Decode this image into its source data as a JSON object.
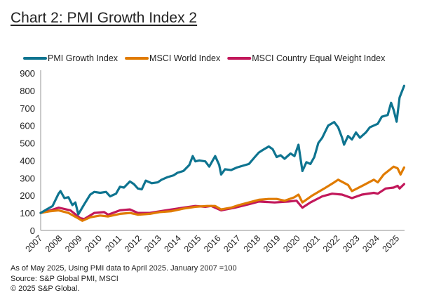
{
  "chart_data": {
    "type": "line",
    "title": "Chart 2: PMI Growth Index 2",
    "xlabel": "",
    "ylabel": "",
    "ylim": [
      0,
      900
    ],
    "yticks": [
      0,
      100,
      200,
      300,
      400,
      500,
      600,
      700,
      800,
      900
    ],
    "xticks": [
      "2007",
      "2008",
      "2009",
      "2010",
      "2011",
      "2012",
      "2013",
      "2014",
      "2015",
      "2016",
      "2017",
      "2018",
      "2019",
      "2020",
      "2021",
      "2022",
      "2023",
      "2024",
      "2025"
    ],
    "xlim": [
      2007,
      2025.35
    ],
    "grid": false,
    "legend_position": "top",
    "series": [
      {
        "name": "PMI Growth Index",
        "color": "#0e7490",
        "x": [
          2007.0,
          2007.3,
          2007.6,
          2007.9,
          2008.0,
          2008.2,
          2008.4,
          2008.6,
          2008.75,
          2008.9,
          2009.2,
          2009.5,
          2009.7,
          2010.0,
          2010.3,
          2010.5,
          2010.8,
          2011.0,
          2011.2,
          2011.5,
          2011.7,
          2011.9,
          2012.1,
          2012.3,
          2012.6,
          2012.9,
          2013.1,
          2013.4,
          2013.7,
          2013.9,
          2014.2,
          2014.5,
          2014.67,
          2014.8,
          2015.0,
          2015.3,
          2015.5,
          2015.8,
          2016.0,
          2016.1,
          2016.3,
          2016.6,
          2016.9,
          2017.2,
          2017.5,
          2017.8,
          2018.0,
          2018.2,
          2018.5,
          2018.7,
          2018.9,
          2019.1,
          2019.3,
          2019.6,
          2019.8,
          2020.0,
          2020.2,
          2020.4,
          2020.6,
          2020.8,
          2021.0,
          2021.2,
          2021.5,
          2021.8,
          2022.0,
          2022.2,
          2022.3,
          2022.5,
          2022.7,
          2022.9,
          2023.1,
          2023.4,
          2023.6,
          2023.8,
          2024.0,
          2024.2,
          2024.5,
          2024.67,
          2024.8,
          2024.95,
          2025.1,
          2025.33
        ],
        "values": [
          100,
          120,
          140,
          210,
          225,
          185,
          190,
          145,
          160,
          92,
          150,
          205,
          220,
          215,
          220,
          195,
          210,
          250,
          245,
          280,
          265,
          240,
          235,
          285,
          270,
          275,
          290,
          305,
          315,
          330,
          340,
          375,
          425,
          395,
          400,
          395,
          365,
          425,
          375,
          320,
          350,
          345,
          360,
          370,
          380,
          420,
          445,
          460,
          480,
          465,
          420,
          430,
          410,
          440,
          425,
          490,
          340,
          390,
          380,
          420,
          500,
          530,
          600,
          620,
          590,
          530,
          490,
          540,
          520,
          560,
          530,
          560,
          590,
          600,
          610,
          650,
          660,
          730,
          690,
          622,
          760,
          827
        ]
      },
      {
        "name": "MSCI World Index",
        "color": "#e07b00",
        "x": [
          2007.0,
          2007.5,
          2007.9,
          2008.4,
          2008.8,
          2009.1,
          2009.5,
          2010.0,
          2010.4,
          2011.0,
          2011.5,
          2011.9,
          2012.5,
          2013.0,
          2013.6,
          2014.2,
          2014.8,
          2015.4,
          2015.8,
          2016.1,
          2016.6,
          2017.0,
          2017.5,
          2018.0,
          2018.5,
          2018.9,
          2019.3,
          2019.8,
          2020.0,
          2020.2,
          2020.7,
          2021.3,
          2021.8,
          2022.0,
          2022.5,
          2022.7,
          2023.3,
          2023.8,
          2024.0,
          2024.3,
          2024.8,
          2025.0,
          2025.15,
          2025.33
        ],
        "values": [
          100,
          110,
          115,
          100,
          75,
          55,
          75,
          85,
          80,
          95,
          100,
          90,
          95,
          105,
          110,
          125,
          135,
          140,
          140,
          120,
          130,
          145,
          160,
          175,
          180,
          180,
          170,
          190,
          205,
          160,
          200,
          240,
          275,
          290,
          260,
          225,
          260,
          290,
          275,
          320,
          365,
          355,
          320,
          360
        ]
      },
      {
        "name": "MSCI Country Equal Weight Index",
        "color": "#c2185b",
        "x": [
          2007.0,
          2007.5,
          2007.9,
          2008.5,
          2009.0,
          2009.2,
          2009.7,
          2010.2,
          2010.4,
          2011.0,
          2011.5,
          2011.9,
          2012.5,
          2013.3,
          2014.2,
          2014.8,
          2015.3,
          2015.6,
          2016.1,
          2016.8,
          2017.5,
          2018.0,
          2018.8,
          2019.5,
          2019.9,
          2020.2,
          2020.6,
          2021.2,
          2021.7,
          2022.2,
          2022.7,
          2023.2,
          2023.8,
          2024.0,
          2024.4,
          2024.8,
          2025.0,
          2025.1,
          2025.33
        ],
        "values": [
          100,
          115,
          130,
          115,
          70,
          65,
          100,
          105,
          90,
          115,
          120,
          100,
          100,
          115,
          130,
          140,
          135,
          140,
          115,
          130,
          150,
          165,
          160,
          165,
          170,
          130,
          160,
          195,
          210,
          205,
          185,
          205,
          215,
          210,
          240,
          245,
          255,
          240,
          265
        ]
      }
    ]
  },
  "footnotes": [
    "As of May 2025, Using PMI data to April 2025. January 2007 =100",
    "Source: S&P Global PMI, MSCI",
    "© 2025 S&P Global."
  ]
}
